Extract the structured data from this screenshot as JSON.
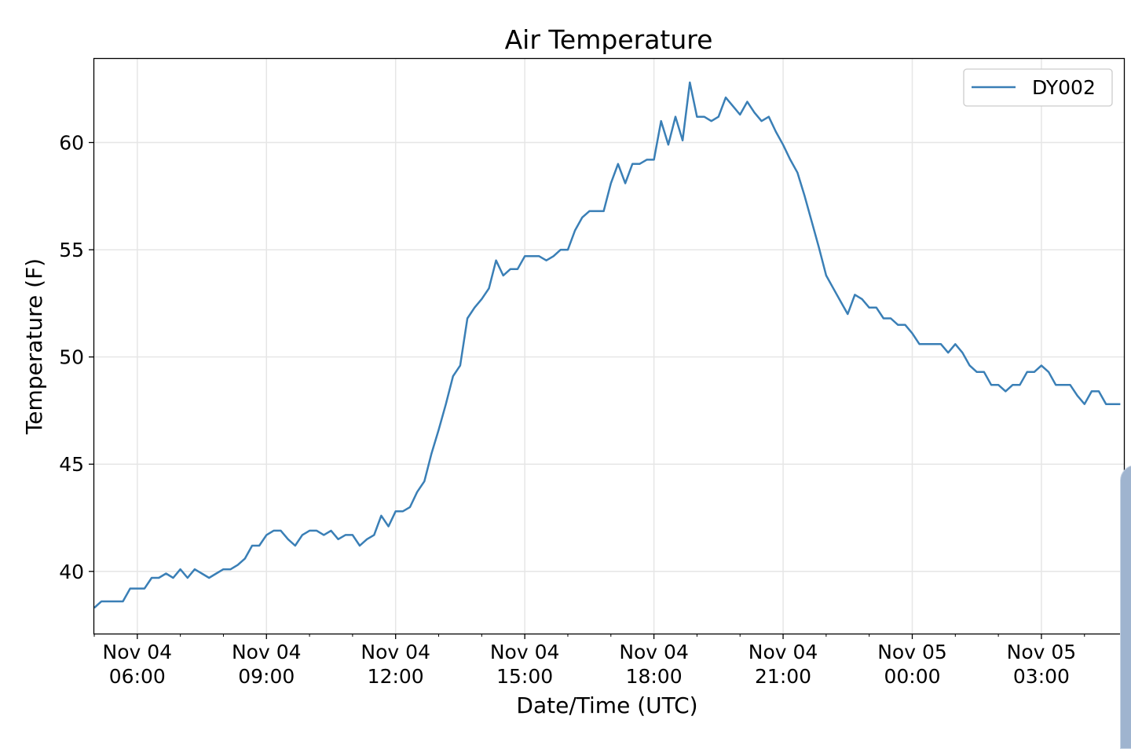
{
  "chart_data": {
    "type": "line",
    "title": "Air Temperature",
    "xlabel": "Date/Time (UTC)",
    "ylabel": "Temperature (F)",
    "x_unit": "hours",
    "xlim": [
      "Nov 04 05:00",
      "Nov 05 04:55"
    ],
    "ylim": [
      37.1,
      63.9
    ],
    "y_ticks": [
      40,
      45,
      50,
      55,
      60
    ],
    "x_ticks": [
      {
        "line1": "Nov 04",
        "line2": "06:00"
      },
      {
        "line1": "Nov 04",
        "line2": "09:00"
      },
      {
        "line1": "Nov 04",
        "line2": "12:00"
      },
      {
        "line1": "Nov 04",
        "line2": "15:00"
      },
      {
        "line1": "Nov 04",
        "line2": "18:00"
      },
      {
        "line1": "Nov 04",
        "line2": "21:00"
      },
      {
        "line1": "Nov 05",
        "line2": "00:00"
      },
      {
        "line1": "Nov 05",
        "line2": "03:00"
      }
    ],
    "grid": true,
    "legend_position": "top-right",
    "series": [
      {
        "name": "DY002",
        "color": "#3a7fb6",
        "x": [
          "Nov 04 05:00",
          "Nov 04 05:10",
          "Nov 04 05:20",
          "Nov 04 05:30",
          "Nov 04 05:40",
          "Nov 04 05:50",
          "Nov 04 06:00",
          "Nov 04 06:10",
          "Nov 04 06:20",
          "Nov 04 06:30",
          "Nov 04 06:40",
          "Nov 04 06:50",
          "Nov 04 07:00",
          "Nov 04 07:10",
          "Nov 04 07:20",
          "Nov 04 07:30",
          "Nov 04 07:40",
          "Nov 04 07:50",
          "Nov 04 08:00",
          "Nov 04 08:10",
          "Nov 04 08:20",
          "Nov 04 08:30",
          "Nov 04 08:40",
          "Nov 04 08:50",
          "Nov 04 09:00",
          "Nov 04 09:10",
          "Nov 04 09:20",
          "Nov 04 09:30",
          "Nov 04 09:40",
          "Nov 04 09:50",
          "Nov 04 10:00",
          "Nov 04 10:10",
          "Nov 04 10:20",
          "Nov 04 10:30",
          "Nov 04 10:40",
          "Nov 04 10:50",
          "Nov 04 11:00",
          "Nov 04 11:10",
          "Nov 04 11:20",
          "Nov 04 11:30",
          "Nov 04 11:40",
          "Nov 04 11:50",
          "Nov 04 12:00",
          "Nov 04 12:10",
          "Nov 04 12:20",
          "Nov 04 12:30",
          "Nov 04 12:40",
          "Nov 04 12:50",
          "Nov 04 13:00",
          "Nov 04 13:10",
          "Nov 04 13:20",
          "Nov 04 13:30",
          "Nov 04 13:40",
          "Nov 04 13:50",
          "Nov 04 14:00",
          "Nov 04 14:10",
          "Nov 04 14:20",
          "Nov 04 14:30",
          "Nov 04 14:40",
          "Nov 04 14:50",
          "Nov 04 15:00",
          "Nov 04 15:10",
          "Nov 04 15:20",
          "Nov 04 15:30",
          "Nov 04 15:40",
          "Nov 04 15:50",
          "Nov 04 16:00",
          "Nov 04 16:10",
          "Nov 04 16:20",
          "Nov 04 16:30",
          "Nov 04 16:40",
          "Nov 04 16:50",
          "Nov 04 17:00",
          "Nov 04 17:10",
          "Nov 04 17:20",
          "Nov 04 17:30",
          "Nov 04 17:40",
          "Nov 04 17:50",
          "Nov 04 18:00",
          "Nov 04 18:10",
          "Nov 04 18:20",
          "Nov 04 18:30",
          "Nov 04 18:40",
          "Nov 04 18:50",
          "Nov 04 19:00",
          "Nov 04 19:10",
          "Nov 04 19:20",
          "Nov 04 19:30",
          "Nov 04 19:40",
          "Nov 04 19:50",
          "Nov 04 20:00",
          "Nov 04 20:10",
          "Nov 04 20:20",
          "Nov 04 20:30",
          "Nov 04 20:40",
          "Nov 04 20:50",
          "Nov 04 21:00",
          "Nov 04 21:10",
          "Nov 04 21:20",
          "Nov 04 21:30",
          "Nov 04 21:40",
          "Nov 04 21:50",
          "Nov 04 22:00",
          "Nov 04 22:10",
          "Nov 04 22:20",
          "Nov 04 22:30",
          "Nov 04 22:40",
          "Nov 04 22:50",
          "Nov 04 23:00",
          "Nov 04 23:10",
          "Nov 04 23:20",
          "Nov 04 23:30",
          "Nov 04 23:40",
          "Nov 04 23:50",
          "Nov 05 00:00",
          "Nov 05 00:10",
          "Nov 05 00:20",
          "Nov 05 00:30",
          "Nov 05 00:40",
          "Nov 05 00:50",
          "Nov 05 01:00",
          "Nov 05 01:10",
          "Nov 05 01:20",
          "Nov 05 01:30",
          "Nov 05 01:40",
          "Nov 05 01:50",
          "Nov 05 02:00",
          "Nov 05 02:10",
          "Nov 05 02:20",
          "Nov 05 02:30",
          "Nov 05 02:40",
          "Nov 05 02:50",
          "Nov 05 03:00",
          "Nov 05 03:10",
          "Nov 05 03:20",
          "Nov 05 03:30",
          "Nov 05 03:40",
          "Nov 05 03:50",
          "Nov 05 04:00",
          "Nov 05 04:10",
          "Nov 05 04:20",
          "Nov 05 04:30",
          "Nov 05 04:40",
          "Nov 05 04:50"
        ],
        "y": [
          38.3,
          38.6,
          38.6,
          38.6,
          38.6,
          39.2,
          39.2,
          39.2,
          39.7,
          39.7,
          39.9,
          39.7,
          40.1,
          39.7,
          40.1,
          39.9,
          39.7,
          39.9,
          40.1,
          40.1,
          40.3,
          40.6,
          41.2,
          41.2,
          41.7,
          41.9,
          41.9,
          41.5,
          41.2,
          41.7,
          41.9,
          41.9,
          41.7,
          41.9,
          41.5,
          41.7,
          41.7,
          41.2,
          41.5,
          41.7,
          42.6,
          42.1,
          42.8,
          42.8,
          43.0,
          43.7,
          44.2,
          45.5,
          46.6,
          47.8,
          49.1,
          49.6,
          51.8,
          52.3,
          52.7,
          53.2,
          54.5,
          53.8,
          54.1,
          54.1,
          54.7,
          54.7,
          54.7,
          54.5,
          54.7,
          55.0,
          55.0,
          55.9,
          56.5,
          56.8,
          56.8,
          56.8,
          58.1,
          59.0,
          58.1,
          59.0,
          59.0,
          59.2,
          59.2,
          61.0,
          59.9,
          61.2,
          60.1,
          62.8,
          61.2,
          61.2,
          61.0,
          61.2,
          62.1,
          61.7,
          61.3,
          61.9,
          61.4,
          61.0,
          61.2,
          60.5,
          59.9,
          59.2,
          58.6,
          57.5,
          56.3,
          55.1,
          53.8,
          53.2,
          52.6,
          52.0,
          52.9,
          52.7,
          52.3,
          52.3,
          51.8,
          51.8,
          51.5,
          51.5,
          51.1,
          50.6,
          50.6,
          50.6,
          50.6,
          50.2,
          50.6,
          50.2,
          49.6,
          49.3,
          49.3,
          48.7,
          48.7,
          48.4,
          48.7,
          48.7,
          49.3,
          49.3,
          49.6,
          49.3,
          48.7,
          48.7,
          48.7,
          48.2,
          47.8,
          48.4,
          48.4,
          47.8,
          47.8,
          47.8
        ]
      }
    ]
  }
}
